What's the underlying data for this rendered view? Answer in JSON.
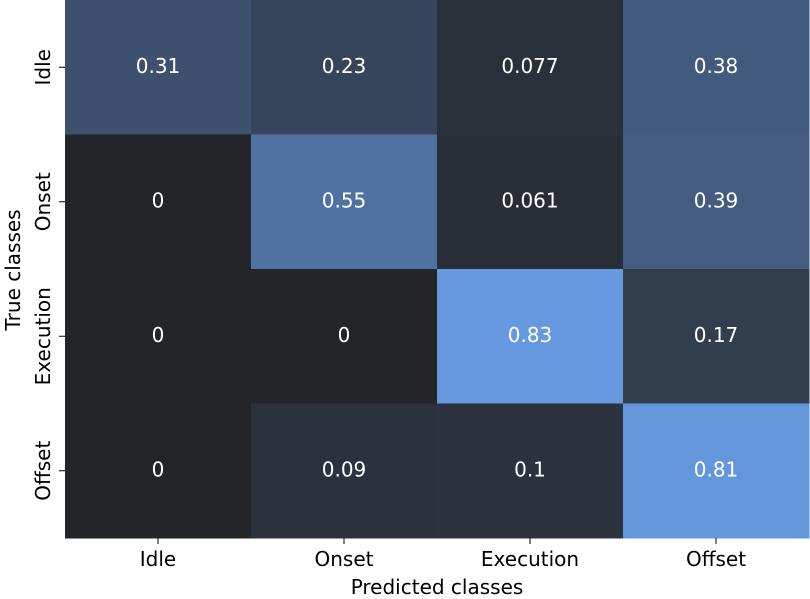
{
  "chart_data": {
    "type": "heatmap",
    "xlabel": "Predicted classes",
    "ylabel": "True classes",
    "x_categories": [
      "Idle",
      "Onset",
      "Execution",
      "Offset"
    ],
    "y_categories": [
      "Idle",
      "Onset",
      "Execution",
      "Offset"
    ],
    "values": [
      [
        0.31,
        0.23,
        0.077,
        0.38
      ],
      [
        0,
        0.55,
        0.061,
        0.39
      ],
      [
        0,
        0,
        0.83,
        0.17
      ],
      [
        0,
        0.09,
        0.1,
        0.81
      ]
    ],
    "value_labels": [
      [
        "0.31",
        "0.23",
        "0.077",
        "0.38"
      ],
      [
        "0",
        "0.55",
        "0.061",
        "0.39"
      ],
      [
        "0",
        "0",
        "0.83",
        "0.17"
      ],
      [
        "0",
        "0.09",
        "0.1",
        "0.81"
      ]
    ],
    "colormap": {
      "low": "#242529",
      "high": "#6699e0",
      "vmin": 0,
      "vmax": 0.83
    },
    "colorbar": false,
    "grid": false
  }
}
